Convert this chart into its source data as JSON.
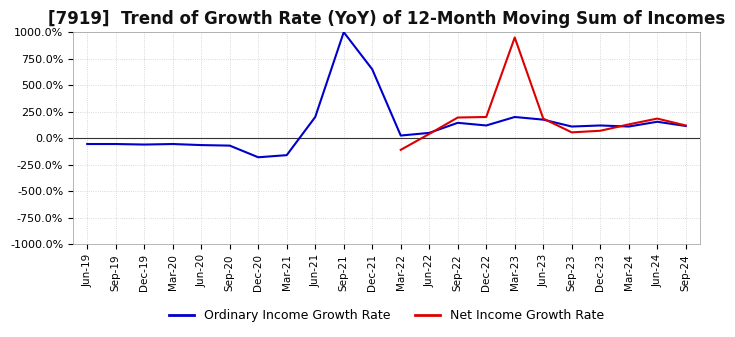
{
  "title": "[7919]  Trend of Growth Rate (YoY) of 12-Month Moving Sum of Incomes",
  "title_fontsize": 12,
  "ylim": [
    -1000,
    1000
  ],
  "yticks": [
    -1000,
    -750,
    -500,
    -250,
    0,
    250,
    500,
    750,
    1000
  ],
  "ytick_labels": [
    "-1000.0%",
    "-750.0%",
    "-500.0%",
    "-250.0%",
    "0.0%",
    "250.0%",
    "500.0%",
    "750.0%",
    "1000.0%"
  ],
  "background_color": "#ffffff",
  "plot_bg_color": "#ffffff",
  "grid_color": "#cccccc",
  "ordinary_color": "#0000cc",
  "net_color": "#dd0000",
  "legend_labels": [
    "Ordinary Income Growth Rate",
    "Net Income Growth Rate"
  ],
  "x_dates": [
    "Jun-19",
    "Sep-19",
    "Dec-19",
    "Mar-20",
    "Jun-20",
    "Sep-20",
    "Dec-20",
    "Mar-21",
    "Jun-21",
    "Sep-21",
    "Dec-21",
    "Mar-22",
    "Jun-22",
    "Sep-22",
    "Dec-22",
    "Mar-23",
    "Jun-23",
    "Sep-23",
    "Dec-23",
    "Mar-24",
    "Jun-24",
    "Sep-24"
  ],
  "ordinary_values": [
    -55,
    -55,
    -60,
    -55,
    -65,
    -70,
    -180,
    -160,
    200,
    1000,
    650,
    25,
    50,
    145,
    120,
    200,
    175,
    110,
    120,
    110,
    155,
    115
  ],
  "net_values": [
    null,
    null,
    null,
    null,
    null,
    null,
    null,
    null,
    null,
    null,
    null,
    -110,
    40,
    195,
    200,
    950,
    185,
    55,
    70,
    130,
    185,
    120
  ]
}
